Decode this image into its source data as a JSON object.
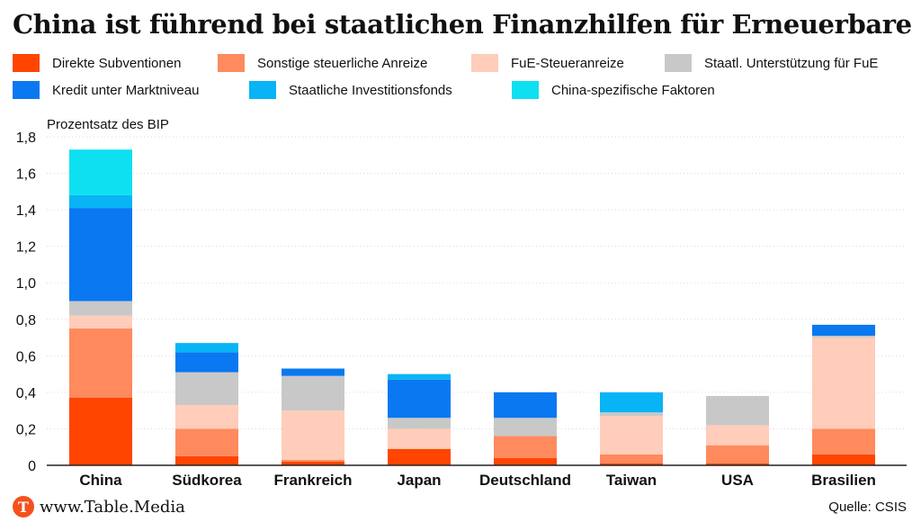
{
  "header": {
    "title": "China ist führend bei staatlichen Finanzhilfen für Erneuerbare"
  },
  "footer": {
    "site": "www.Table.Media",
    "source": "Quelle: CSIS",
    "logo_letter": "T"
  },
  "colors": {
    "Direkte Subventionen": "#ff4500",
    "Sonstige steuerliche Anreize": "#ff8a5e",
    "FuE-Steueranreize": "#ffcdb9",
    "Staatl. Unterstützung für FuE": "#c8c8c8",
    "Kredit unter Marktniveau": "#0a78f0",
    "Staatliche Investitionsfonds": "#08b4f5",
    "China-spezifische Faktoren": "#0ee0f2"
  },
  "chart_data": {
    "type": "bar",
    "stacked": true,
    "title": "China ist führend bei staatlichen Finanzhilfen für Erneuerbare",
    "ylabel": "Prozentsatz des BIP",
    "xlabel": "",
    "ylim": [
      0,
      1.8
    ],
    "yticks": [
      "0",
      "0,2",
      "0,4",
      "0,6",
      "0,8",
      "1,0",
      "1,2",
      "1,4",
      "1,6",
      "1,8"
    ],
    "grid": true,
    "legend_position": "top",
    "categories": [
      "China",
      "Südkorea",
      "Frankreich",
      "Japan",
      "Deutschland",
      "Taiwan",
      "USA",
      "Brasilien"
    ],
    "series": [
      {
        "name": "Direkte Subventionen",
        "values": [
          0.37,
          0.05,
          0.02,
          0.09,
          0.04,
          0.01,
          0.01,
          0.06
        ]
      },
      {
        "name": "Sonstige steuerliche Anreize",
        "values": [
          0.38,
          0.15,
          0.01,
          0.0,
          0.12,
          0.05,
          0.1,
          0.14
        ]
      },
      {
        "name": "FuE-Steueranreize",
        "values": [
          0.07,
          0.13,
          0.27,
          0.11,
          0.0,
          0.21,
          0.11,
          0.5
        ]
      },
      {
        "name": "Staatl. Unterstützung für FuE",
        "values": [
          0.08,
          0.18,
          0.19,
          0.06,
          0.1,
          0.02,
          0.16,
          0.01
        ]
      },
      {
        "name": "Kredit unter Marktniveau",
        "values": [
          0.51,
          0.11,
          0.04,
          0.21,
          0.14,
          0.0,
          0.0,
          0.06
        ]
      },
      {
        "name": "Staatliche Investitionsfonds",
        "values": [
          0.07,
          0.05,
          0.0,
          0.03,
          0.0,
          0.11,
          0.0,
          0.0
        ]
      },
      {
        "name": "China-spezifische Faktoren",
        "values": [
          0.25,
          0.0,
          0.0,
          0.0,
          0.0,
          0.0,
          0.0,
          0.0
        ]
      }
    ]
  }
}
